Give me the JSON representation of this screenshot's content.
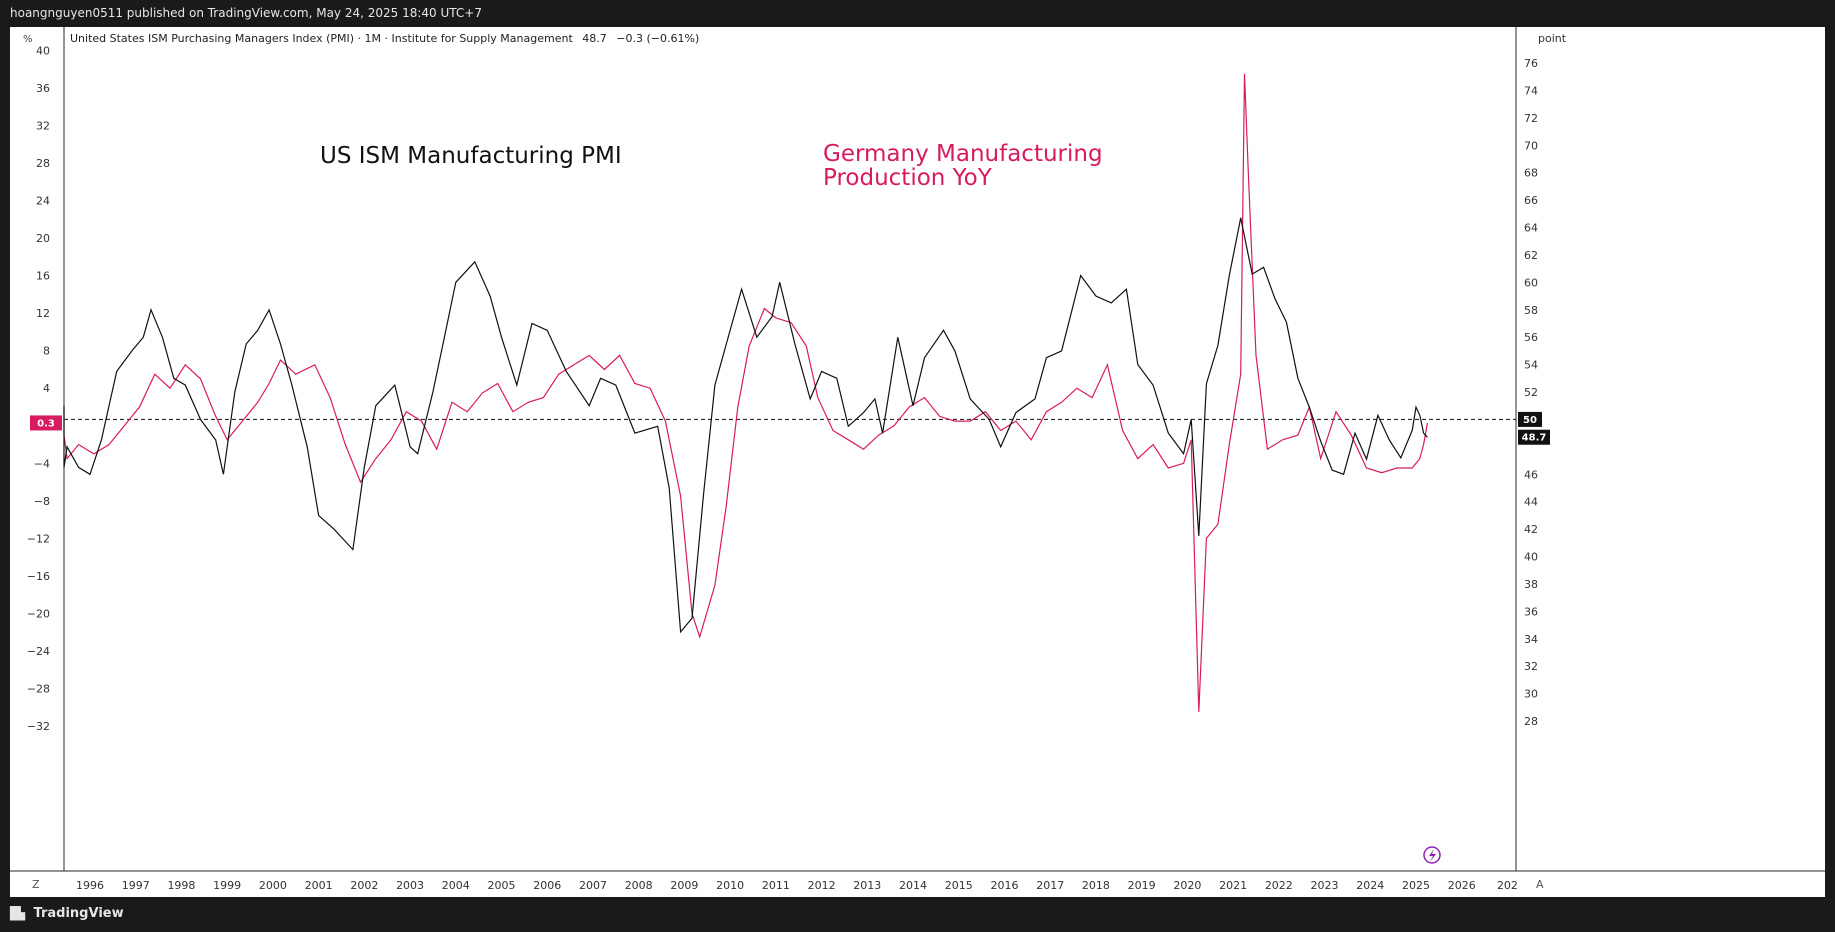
{
  "header": {
    "published_text": "hoangnguyen0511 published on TradingView.com, May 24, 2025 18:40 UTC+7"
  },
  "legend": {
    "symbol_text": "United States ISM Purchasing Managers Index (PMI) · 1M · Institute for Supply Management",
    "last_value": "48.7",
    "change": "−0.3 (−0.61%)"
  },
  "left_axis": {
    "unit": "%",
    "ticks": [
      "40",
      "36",
      "32",
      "28",
      "24",
      "20",
      "16",
      "12",
      "8",
      "4",
      "0",
      "−4",
      "−8",
      "−12",
      "−16",
      "−20",
      "−24",
      "−28",
      "−32"
    ],
    "current_label": "0.3"
  },
  "right_axis": {
    "unit": "point",
    "ticks": [
      "76",
      "74",
      "72",
      "70",
      "68",
      "66",
      "64",
      "62",
      "60",
      "58",
      "56",
      "54",
      "52",
      "50",
      "48",
      "46",
      "44",
      "42",
      "40",
      "38",
      "36",
      "34",
      "32",
      "30",
      "28"
    ],
    "reference_label": "50",
    "current_label": "48.7"
  },
  "time_axis": {
    "labels": [
      "1996",
      "1997",
      "1998",
      "1999",
      "2000",
      "2001",
      "2002",
      "2003",
      "2004",
      "2005",
      "2006",
      "2007",
      "2008",
      "2009",
      "2010",
      "2011",
      "2012",
      "2013",
      "2014",
      "2015",
      "2016",
      "2017",
      "2018",
      "2019",
      "2020",
      "2021",
      "2022",
      "2023",
      "2024",
      "2025",
      "2026",
      "202"
    ]
  },
  "annotations": {
    "us_label": "US ISM Manufacturing PMI",
    "de_label_line1": "Germany Manufacturing",
    "de_label_line2": "Production YoY"
  },
  "controls": {
    "left_corner": "Z",
    "right_corner": "A"
  },
  "footer": {
    "brand": "TradingView"
  },
  "colors": {
    "us_series": "#111111",
    "de_series": "#d81b60",
    "background": "#ffffff",
    "chrome": "#1a1a1a"
  },
  "chart_data": {
    "type": "line",
    "x_range": [
      "1995-01",
      "2025-04"
    ],
    "series": [
      {
        "name": "United States ISM Purchasing Managers Index (PMI)",
        "axis": "right",
        "unit": "point",
        "ylim": [
          27,
          77
        ],
        "points": [
          [
            "1995-01",
            51.0
          ],
          [
            "1995-04",
            46.5
          ],
          [
            "1995-07",
            48.0
          ],
          [
            "1995-10",
            46.5
          ],
          [
            "1996-01",
            46.0
          ],
          [
            "1996-04",
            48.5
          ],
          [
            "1996-08",
            53.5
          ],
          [
            "1996-12",
            55.0
          ],
          [
            "1997-03",
            56.0
          ],
          [
            "1997-05",
            58.0
          ],
          [
            "1997-08",
            56.0
          ],
          [
            "1997-11",
            53.0
          ],
          [
            "1998-02",
            52.5
          ],
          [
            "1998-06",
            50.0
          ],
          [
            "1998-10",
            48.5
          ],
          [
            "1998-12",
            46.0
          ],
          [
            "1999-03",
            52.0
          ],
          [
            "1999-06",
            55.5
          ],
          [
            "1999-09",
            56.5
          ],
          [
            "1999-12",
            58.0
          ],
          [
            "2000-03",
            55.5
          ],
          [
            "2000-06",
            52.5
          ],
          [
            "2000-10",
            48.0
          ],
          [
            "2001-01",
            43.0
          ],
          [
            "2001-05",
            42.0
          ],
          [
            "2001-10",
            40.5
          ],
          [
            "2002-01",
            46.5
          ],
          [
            "2002-04",
            51.0
          ],
          [
            "2002-09",
            52.5
          ],
          [
            "2003-01",
            48.0
          ],
          [
            "2003-03",
            47.5
          ],
          [
            "2003-07",
            52.0
          ],
          [
            "2003-10",
            56.0
          ],
          [
            "2004-01",
            60.0
          ],
          [
            "2004-06",
            61.5
          ],
          [
            "2004-10",
            59.0
          ],
          [
            "2005-01",
            56.0
          ],
          [
            "2005-05",
            52.5
          ],
          [
            "2005-09",
            57.0
          ],
          [
            "2006-01",
            56.5
          ],
          [
            "2006-06",
            53.5
          ],
          [
            "2006-12",
            51.0
          ],
          [
            "2007-03",
            53.0
          ],
          [
            "2007-07",
            52.5
          ],
          [
            "2007-12",
            49.0
          ],
          [
            "2008-06",
            49.5
          ],
          [
            "2008-09",
            45.0
          ],
          [
            "2008-12",
            34.5
          ],
          [
            "2009-03",
            35.5
          ],
          [
            "2009-06",
            44.5
          ],
          [
            "2009-09",
            52.5
          ],
          [
            "2009-12",
            55.5
          ],
          [
            "2010-04",
            59.5
          ],
          [
            "2010-08",
            56.0
          ],
          [
            "2010-12",
            57.5
          ],
          [
            "2011-02",
            60.0
          ],
          [
            "2011-06",
            55.5
          ],
          [
            "2011-10",
            51.5
          ],
          [
            "2012-01",
            53.5
          ],
          [
            "2012-05",
            53.0
          ],
          [
            "2012-08",
            49.5
          ],
          [
            "2012-12",
            50.5
          ],
          [
            "2013-03",
            51.5
          ],
          [
            "2013-05",
            49.0
          ],
          [
            "2013-09",
            56.0
          ],
          [
            "2014-01",
            51.0
          ],
          [
            "2014-04",
            54.5
          ],
          [
            "2014-09",
            56.5
          ],
          [
            "2014-12",
            55.0
          ],
          [
            "2015-04",
            51.5
          ],
          [
            "2015-09",
            50.0
          ],
          [
            "2015-12",
            48.0
          ],
          [
            "2016-04",
            50.5
          ],
          [
            "2016-09",
            51.5
          ],
          [
            "2016-12",
            54.5
          ],
          [
            "2017-04",
            55.0
          ],
          [
            "2017-09",
            60.5
          ],
          [
            "2018-01",
            59.0
          ],
          [
            "2018-05",
            58.5
          ],
          [
            "2018-09",
            59.5
          ],
          [
            "2018-12",
            54.0
          ],
          [
            "2019-04",
            52.5
          ],
          [
            "2019-08",
            49.0
          ],
          [
            "2019-12",
            47.5
          ],
          [
            "2020-02",
            50.0
          ],
          [
            "2020-04",
            41.5
          ],
          [
            "2020-06",
            52.6
          ],
          [
            "2020-09",
            55.4
          ],
          [
            "2020-12",
            60.5
          ],
          [
            "2021-03",
            64.7
          ],
          [
            "2021-06",
            60.6
          ],
          [
            "2021-09",
            61.1
          ],
          [
            "2021-12",
            58.8
          ],
          [
            "2022-03",
            57.1
          ],
          [
            "2022-06",
            53.0
          ],
          [
            "2022-09",
            50.9
          ],
          [
            "2022-12",
            48.4
          ],
          [
            "2023-03",
            46.3
          ],
          [
            "2023-06",
            46.0
          ],
          [
            "2023-09",
            49.0
          ],
          [
            "2023-12",
            47.1
          ],
          [
            "2024-03",
            50.3
          ],
          [
            "2024-06",
            48.5
          ],
          [
            "2024-09",
            47.2
          ],
          [
            "2024-12",
            49.2
          ],
          [
            "2025-01",
            50.9
          ],
          [
            "2025-02",
            50.3
          ],
          [
            "2025-03",
            49.0
          ],
          [
            "2025-04",
            48.7
          ]
        ]
      },
      {
        "name": "Germany Manufacturing Production YoY",
        "axis": "left",
        "unit": "%",
        "ylim": [
          -34,
          40
        ],
        "points": [
          [
            "1995-01",
            2.0
          ],
          [
            "1995-04",
            -1.0
          ],
          [
            "1995-07",
            -3.5
          ],
          [
            "1995-10",
            -2.0
          ],
          [
            "1996-02",
            -3.0
          ],
          [
            "1996-06",
            -2.0
          ],
          [
            "1996-10",
            0.0
          ],
          [
            "1997-02",
            2.0
          ],
          [
            "1997-06",
            5.5
          ],
          [
            "1997-10",
            4.0
          ],
          [
            "1998-02",
            6.5
          ],
          [
            "1998-06",
            5.0
          ],
          [
            "1998-10",
            1.0
          ],
          [
            "1999-01",
            -1.5
          ],
          [
            "1999-05",
            0.5
          ],
          [
            "1999-09",
            2.5
          ],
          [
            "1999-12",
            4.5
          ],
          [
            "2000-03",
            7.0
          ],
          [
            "2000-07",
            5.5
          ],
          [
            "2000-12",
            6.5
          ],
          [
            "2001-04",
            3.0
          ],
          [
            "2001-08",
            -2.0
          ],
          [
            "2001-12",
            -6.0
          ],
          [
            "2002-04",
            -3.5
          ],
          [
            "2002-08",
            -1.5
          ],
          [
            "2002-12",
            1.5
          ],
          [
            "2003-04",
            0.5
          ],
          [
            "2003-08",
            -2.5
          ],
          [
            "2003-12",
            2.5
          ],
          [
            "2004-04",
            1.5
          ],
          [
            "2004-08",
            3.5
          ],
          [
            "2004-12",
            4.5
          ],
          [
            "2005-04",
            1.5
          ],
          [
            "2005-08",
            2.5
          ],
          [
            "2005-12",
            3.0
          ],
          [
            "2006-04",
            5.5
          ],
          [
            "2006-08",
            6.5
          ],
          [
            "2006-12",
            7.5
          ],
          [
            "2007-04",
            6.0
          ],
          [
            "2007-08",
            7.5
          ],
          [
            "2007-12",
            4.5
          ],
          [
            "2008-04",
            4.0
          ],
          [
            "2008-08",
            0.5
          ],
          [
            "2008-12",
            -7.5
          ],
          [
            "2009-03",
            -20.0
          ],
          [
            "2009-05",
            -22.5
          ],
          [
            "2009-09",
            -17.0
          ],
          [
            "2009-12",
            -8.5
          ],
          [
            "2010-03",
            2.0
          ],
          [
            "2010-06",
            8.5
          ],
          [
            "2010-10",
            12.5
          ],
          [
            "2011-01",
            11.5
          ],
          [
            "2011-05",
            11.0
          ],
          [
            "2011-09",
            8.5
          ],
          [
            "2011-12",
            3.0
          ],
          [
            "2012-04",
            -0.5
          ],
          [
            "2012-08",
            -1.5
          ],
          [
            "2012-12",
            -2.5
          ],
          [
            "2013-04",
            -1.0
          ],
          [
            "2013-08",
            0.0
          ],
          [
            "2013-12",
            2.0
          ],
          [
            "2014-04",
            3.0
          ],
          [
            "2014-08",
            1.0
          ],
          [
            "2014-12",
            0.5
          ],
          [
            "2015-04",
            0.5
          ],
          [
            "2015-08",
            1.5
          ],
          [
            "2015-12",
            -0.5
          ],
          [
            "2016-04",
            0.5
          ],
          [
            "2016-08",
            -1.5
          ],
          [
            "2016-12",
            1.5
          ],
          [
            "2017-04",
            2.5
          ],
          [
            "2017-08",
            4.0
          ],
          [
            "2017-12",
            3.0
          ],
          [
            "2018-04",
            6.5
          ],
          [
            "2018-08",
            -0.5
          ],
          [
            "2018-12",
            -3.5
          ],
          [
            "2019-04",
            -2.0
          ],
          [
            "2019-08",
            -4.5
          ],
          [
            "2019-12",
            -4.0
          ],
          [
            "2020-02",
            -1.5
          ],
          [
            "2020-04",
            -30.5
          ],
          [
            "2020-06",
            -12.0
          ],
          [
            "2020-09",
            -10.5
          ],
          [
            "2020-12",
            -2.0
          ],
          [
            "2021-03",
            5.5
          ],
          [
            "2021-04",
            37.5
          ],
          [
            "2021-05",
            27.0
          ],
          [
            "2021-07",
            7.5
          ],
          [
            "2021-10",
            -2.5
          ],
          [
            "2022-02",
            -1.5
          ],
          [
            "2022-06",
            -1.0
          ],
          [
            "2022-09",
            2.0
          ],
          [
            "2022-12",
            -3.5
          ],
          [
            "2023-04",
            1.5
          ],
          [
            "2023-08",
            -1.0
          ],
          [
            "2023-12",
            -4.5
          ],
          [
            "2024-04",
            -5.0
          ],
          [
            "2024-08",
            -4.5
          ],
          [
            "2024-12",
            -4.5
          ],
          [
            "2025-02",
            -3.5
          ],
          [
            "2025-03",
            -2.0
          ],
          [
            "2025-04",
            0.3
          ]
        ]
      }
    ],
    "reference_line": {
      "axis": "right",
      "value": 50,
      "style": "dashed"
    },
    "grid": false,
    "legend_position": "top-left"
  }
}
